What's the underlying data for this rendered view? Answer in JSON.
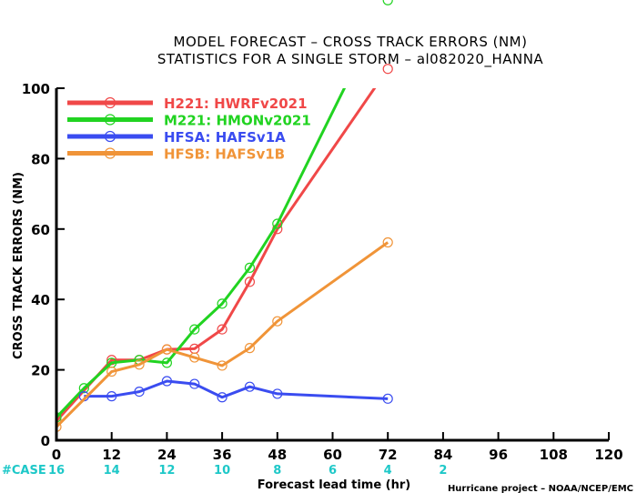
{
  "chart_data": {
    "type": "line",
    "title": "MODEL FORECAST – CROSS TRACK ERRORS (NM)",
    "subtitle": "STATISTICS FOR A SINGLE STORM – al082020_HANNA",
    "xlabel": "Forecast lead time (hr)",
    "ylabel": "CROSS TRACK ERRORS (NM)",
    "xlim": [
      0,
      120
    ],
    "ylim": [
      0,
      100
    ],
    "x_ticks": [
      0,
      12,
      24,
      36,
      48,
      60,
      72,
      84,
      96,
      108,
      120
    ],
    "y_ticks": [
      0,
      20,
      40,
      60,
      80,
      100
    ],
    "grid": false,
    "legend_position": "top-left",
    "series": [
      {
        "name": "H221: HWRFv2021",
        "color": "#f04848",
        "x": [
          0,
          12,
          18,
          24,
          30,
          36,
          42,
          48,
          72
        ],
        "y": [
          5.5,
          22.8,
          22.8,
          25.8,
          26.0,
          31.5,
          45.0,
          60.0,
          105.5
        ]
      },
      {
        "name": "M221: HMONv2021",
        "color": "#21d321",
        "x": [
          0,
          6,
          12,
          18,
          24,
          30,
          36,
          42,
          48,
          72
        ],
        "y": [
          6.5,
          14.8,
          22.0,
          22.8,
          22.0,
          31.5,
          38.8,
          49.0,
          61.5,
          125.0
        ]
      },
      {
        "name": "HFSA: HAFSv1A",
        "color": "#3a4cf0",
        "x": [
          6,
          12,
          18,
          24,
          30,
          36,
          42,
          48,
          72
        ],
        "y": [
          12.5,
          12.5,
          13.8,
          16.8,
          16.0,
          12.2,
          15.2,
          13.2,
          11.8
        ]
      },
      {
        "name": "HFSB: HAFSv1B",
        "color": "#f09438",
        "x": [
          0,
          12,
          18,
          24,
          30,
          36,
          42,
          48,
          72
        ],
        "y": [
          3.8,
          19.5,
          21.5,
          25.8,
          23.5,
          21.2,
          26.2,
          33.8,
          56.2
        ]
      }
    ],
    "cases": {
      "label": "#CASE",
      "x": [
        0,
        12,
        24,
        36,
        48,
        60,
        72,
        84
      ],
      "values": [
        "16",
        "14",
        "12",
        "10",
        "8",
        "6",
        "4",
        "2"
      ]
    },
    "credit": "Hurricane project – NOAA/NCEP/EMC"
  }
}
